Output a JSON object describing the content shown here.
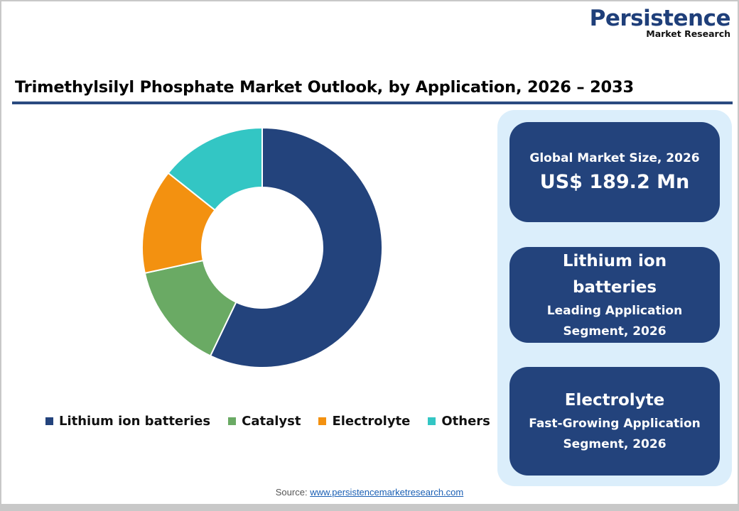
{
  "logo": {
    "name": "Persistence",
    "tagline": "Market Research"
  },
  "header": {
    "title": "Trimethylsilyl Phosphate Market Outlook, by Application, 2026 – 2033"
  },
  "chart_data": {
    "type": "pie",
    "subtype": "donut",
    "title": "Trimethylsilyl Phosphate Market Outlook, by Application, 2026 – 2033",
    "categories": [
      "Lithium ion batteries",
      "Catalyst",
      "Electrolyte",
      "Others"
    ],
    "values": [
      57.1,
      14.5,
      14.1,
      14.3
    ],
    "unit": "% share (estimated from slice angles)",
    "colors": [
      "#23437c",
      "#6aaa64",
      "#f39110",
      "#33c6c4"
    ],
    "start_angle_deg": 0,
    "direction": "clockwise",
    "legend_position": "bottom",
    "data_labels": false
  },
  "legend": {
    "items": [
      {
        "label": "Lithium ion batteries",
        "color": "#23437c"
      },
      {
        "label": "Catalyst",
        "color": "#6aaa64"
      },
      {
        "label": "Electrolyte",
        "color": "#f39110"
      },
      {
        "label": "Others",
        "color": "#33c6c4"
      }
    ]
  },
  "side_panel": {
    "market_size": {
      "label": "Global Market Size, 2026",
      "value": "US$ 189.2 Mn"
    },
    "leading_segment": {
      "name_line1": "Lithium ion",
      "name_line2": "batteries",
      "caption_line1": "Leading Application",
      "caption_line2": "Segment, 2026"
    },
    "fastest_segment": {
      "name": "Electrolyte",
      "caption_line1": "Fast-Growing Application",
      "caption_line2": "Segment, 2026"
    }
  },
  "footer": {
    "source_label": "Source:",
    "source_link": "www.persistencemarketresearch.com"
  },
  "colors": {
    "brand_navy": "#23437c",
    "title_rule": "#2a4a80",
    "panel_bg": "#dbeefb"
  }
}
